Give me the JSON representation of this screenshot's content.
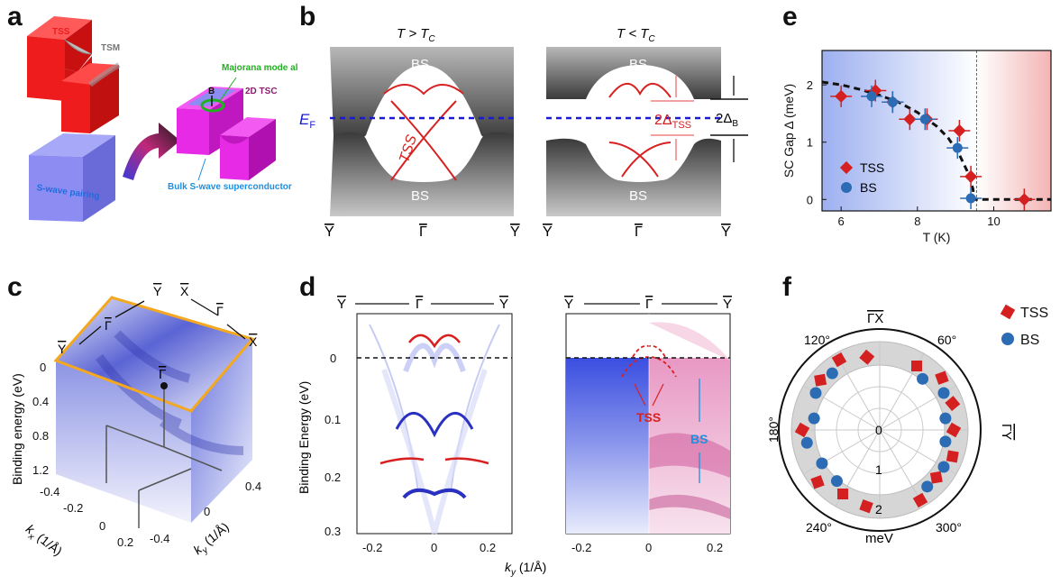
{
  "figure": {
    "panel_a": {
      "label": "a",
      "tss": "TSS",
      "tsm": "TSM",
      "swave": "S-wave pairing",
      "majorana": "Majorana mode along edge",
      "tsc2d": "2D TSC",
      "b_field": "B",
      "bulk": "Bulk S-wave superconductor",
      "colors": {
        "red": "#ee1c1c",
        "magenta": "#e62ae6",
        "lavender": "#8c8cf2",
        "green": "#22b022",
        "cyan": "#1e90e0"
      }
    },
    "panel_b": {
      "label": "b",
      "left_title_main": "T > T",
      "left_title_sub": "C",
      "right_title_main": "T < T",
      "right_title_sub": "C",
      "bs": "BS",
      "ef_main": "E",
      "ef_sub": "F",
      "tss": "TSS",
      "gap_tss_main": "2Δ",
      "gap_tss_sub": "TSS",
      "gap_b_main": "2Δ",
      "gap_b_sub": "B",
      "y_bar": "Y",
      "gamma_bar": "Γ"
    },
    "panel_c": {
      "label": "c",
      "top_labels": [
        "Y",
        "Γ",
        "Y",
        "X",
        "Γ",
        "X"
      ],
      "gamma": "Γ",
      "y_axis_label": "Binding energy (eV)",
      "energy_ticks": [
        "0",
        "0.4",
        "0.8",
        "1.2"
      ],
      "kx_ticks": [
        "-0.4",
        "-0.2",
        "0",
        "0.2"
      ],
      "ky_ticks": [
        "0.4",
        "0",
        "-0.4"
      ],
      "kx_label": "k",
      "kx_label_sub": "x",
      "kx_unit": " (1/Å)",
      "ky_label": "k",
      "ky_label_sub": "y",
      "ky_unit": " (1/Å)"
    },
    "panel_d": {
      "label": "d",
      "y_label": "Binding Energy (eV)",
      "x_label": "k",
      "x_label_sub": "y",
      "x_unit": " (1/Å)",
      "y_ticks": [
        "0",
        "0.1",
        "0.2",
        "0.3"
      ],
      "x_ticks_left": [
        "-0.2",
        "0",
        "0.2"
      ],
      "x_ticks_right": [
        "-0.2",
        "0",
        "0.2"
      ],
      "top_left": [
        "Y",
        "Γ",
        "Y"
      ],
      "top_right": [
        "Y",
        "Γ",
        "Y"
      ],
      "tss": "TSS",
      "bs": "BS"
    },
    "panel_e": {
      "label": "e",
      "chart_data": {
        "type": "scatter",
        "xlabel": "T (K)",
        "ylabel": "SC Gap Δ (meV)",
        "xlim": [
          5.5,
          11.5
        ],
        "ylim": [
          -0.2,
          2.6
        ],
        "xticks": [
          "6",
          "8",
          "10"
        ],
        "yticks": [
          "0",
          "1",
          "2"
        ],
        "tc": 9.55,
        "series": [
          {
            "name": "TSS",
            "color": "#d42020",
            "points": [
              [
                6.0,
                1.8
              ],
              [
                6.9,
                1.9
              ],
              [
                7.35,
                1.7
              ],
              [
                7.8,
                1.4
              ],
              [
                8.25,
                1.4
              ],
              [
                9.1,
                1.2
              ],
              [
                9.4,
                0.4
              ],
              [
                10.8,
                0.0
              ]
            ]
          },
          {
            "name": "BS",
            "color": "#2b6cb4",
            "points": [
              [
                6.8,
                1.8
              ],
              [
                7.35,
                1.7
              ],
              [
                8.2,
                1.4
              ],
              [
                9.05,
                0.9
              ],
              [
                9.4,
                0.02
              ]
            ]
          }
        ],
        "fit_curve": [
          [
            5.5,
            2.05
          ],
          [
            6.0,
            2.0
          ],
          [
            6.5,
            1.92
          ],
          [
            7.0,
            1.82
          ],
          [
            7.5,
            1.7
          ],
          [
            8.0,
            1.52
          ],
          [
            8.5,
            1.28
          ],
          [
            8.8,
            1.08
          ],
          [
            9.1,
            0.78
          ],
          [
            9.3,
            0.5
          ],
          [
            9.45,
            0.2
          ],
          [
            9.5,
            0.0
          ],
          [
            11.5,
            0.0
          ]
        ],
        "legend": [
          "TSS",
          "BS"
        ]
      }
    },
    "panel_f": {
      "label": "f",
      "legend_tss": "TSS",
      "legend_bs": "BS",
      "gamma_x": "ΓX",
      "gamma_y": "ΓY",
      "angle_labels": [
        "60°",
        "120°",
        "180°",
        "240°",
        "300°"
      ],
      "radial_labels": [
        "0",
        "1",
        "2"
      ],
      "unit": "meV"
    }
  }
}
